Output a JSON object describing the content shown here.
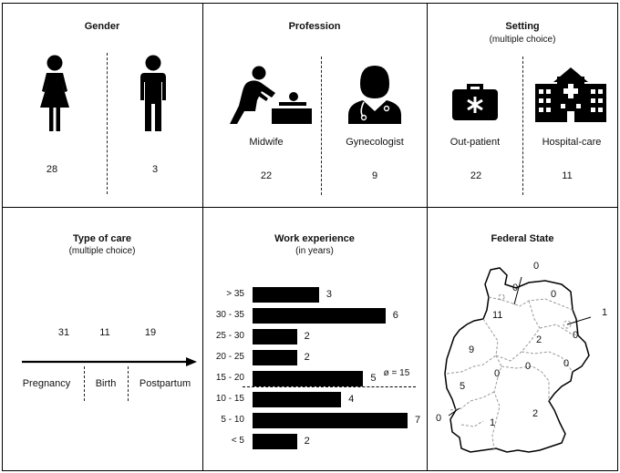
{
  "gender": {
    "title": "Gender",
    "items": [
      {
        "icon": "female-person-icon",
        "count": "28"
      },
      {
        "icon": "male-person-icon",
        "count": "3"
      }
    ]
  },
  "profession": {
    "title": "Profession",
    "items": [
      {
        "icon": "midwife-icon",
        "label": "Midwife",
        "count": "22"
      },
      {
        "icon": "doctor-icon",
        "label": "Gynecologist",
        "count": "9"
      }
    ]
  },
  "setting": {
    "title": "Setting",
    "subtitle": "(multiple choice)",
    "items": [
      {
        "icon": "medical-bag-icon",
        "label": "Out-patient",
        "count": "22"
      },
      {
        "icon": "hospital-icon",
        "label": "Hospital-care",
        "count": "11"
      }
    ]
  },
  "type_of_care": {
    "title": "Type of care",
    "subtitle": "(multiple choice)",
    "items": [
      {
        "label": "Pregnancy",
        "count": "31"
      },
      {
        "label": "Birth",
        "count": "11"
      },
      {
        "label": "Postpartum",
        "count": "19"
      }
    ]
  },
  "work_experience": {
    "title": "Work experience",
    "subtitle": "(in years)",
    "mean_label": "ø = 15",
    "chart_data": {
      "type": "bar",
      "orientation": "horizontal",
      "categories": [
        "> 35",
        "30 - 35",
        "25 - 30",
        "20 - 25",
        "15 - 20",
        "10 - 15",
        "5 - 10",
        "< 5"
      ],
      "values": [
        3,
        6,
        2,
        2,
        5,
        4,
        7,
        2
      ],
      "xlim": [
        0,
        7
      ]
    }
  },
  "federal_state": {
    "title": "Federal State",
    "values": [
      "0",
      "0",
      "0",
      "11",
      "1",
      "0",
      "9",
      "2",
      "0",
      "0",
      "0",
      "5",
      "0",
      "2",
      "1"
    ]
  }
}
